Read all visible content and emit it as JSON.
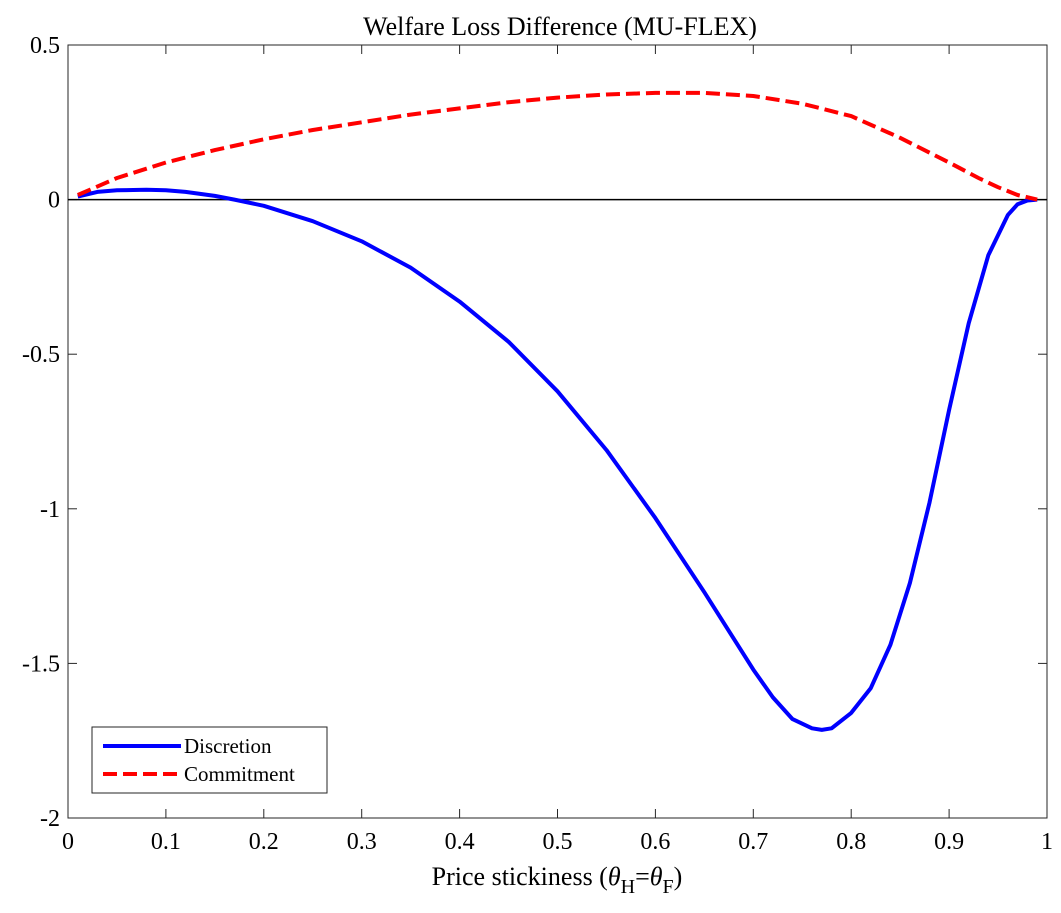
{
  "chart_data": {
    "type": "line",
    "title": "Welfare Loss Difference (MU-FLEX)",
    "xlabel": {
      "prefix": "Price stickiness (",
      "sym1": "θ",
      "sub1": "H",
      "eq": "=",
      "sym2": "θ",
      "sub2": "F",
      "suffix": ")"
    },
    "ylabel": "",
    "xlim": [
      0,
      1
    ],
    "ylim": [
      -2,
      0.5
    ],
    "xticks": [
      0,
      0.1,
      0.2,
      0.3,
      0.4,
      0.5,
      0.6,
      0.7,
      0.8,
      0.9,
      1
    ],
    "xtick_labels": [
      "0",
      "0.1",
      "0.2",
      "0.3",
      "0.4",
      "0.5",
      "0.6",
      "0.7",
      "0.8",
      "0.9",
      "1"
    ],
    "yticks": [
      0.5,
      0,
      -0.5,
      -1,
      -1.5,
      -2
    ],
    "ytick_labels": [
      "0.5",
      "0",
      "-0.5",
      "-1",
      "-1.5",
      "-2"
    ],
    "grid": false,
    "legend_position": "bottom-left",
    "zero_line": true,
    "series": [
      {
        "name": "Discretion",
        "color": "#0000ff",
        "style": "solid",
        "x": [
          0.01,
          0.03,
          0.05,
          0.08,
          0.1,
          0.12,
          0.15,
          0.17,
          0.2,
          0.25,
          0.3,
          0.35,
          0.4,
          0.45,
          0.5,
          0.55,
          0.6,
          0.65,
          0.7,
          0.72,
          0.74,
          0.76,
          0.77,
          0.78,
          0.8,
          0.82,
          0.84,
          0.86,
          0.88,
          0.9,
          0.92,
          0.94,
          0.96,
          0.97,
          0.98,
          0.99
        ],
        "y": [
          0.01,
          0.025,
          0.03,
          0.032,
          0.03,
          0.025,
          0.012,
          0.0,
          -0.02,
          -0.07,
          -0.135,
          -0.22,
          -0.33,
          -0.46,
          -0.62,
          -0.81,
          -1.03,
          -1.27,
          -1.52,
          -1.61,
          -1.68,
          -1.71,
          -1.715,
          -1.71,
          -1.66,
          -1.58,
          -1.44,
          -1.24,
          -0.98,
          -0.68,
          -0.4,
          -0.18,
          -0.05,
          -0.015,
          -0.003,
          0.0
        ]
      },
      {
        "name": "Commitment",
        "color": "#ff0000",
        "style": "dashed",
        "x": [
          0.01,
          0.05,
          0.1,
          0.15,
          0.2,
          0.25,
          0.3,
          0.35,
          0.4,
          0.45,
          0.5,
          0.55,
          0.6,
          0.65,
          0.7,
          0.75,
          0.8,
          0.85,
          0.9,
          0.93,
          0.95,
          0.97,
          0.99
        ],
        "y": [
          0.015,
          0.07,
          0.12,
          0.16,
          0.195,
          0.225,
          0.25,
          0.275,
          0.295,
          0.315,
          0.33,
          0.34,
          0.345,
          0.345,
          0.335,
          0.31,
          0.27,
          0.2,
          0.12,
          0.07,
          0.04,
          0.015,
          0.0
        ]
      }
    ]
  }
}
